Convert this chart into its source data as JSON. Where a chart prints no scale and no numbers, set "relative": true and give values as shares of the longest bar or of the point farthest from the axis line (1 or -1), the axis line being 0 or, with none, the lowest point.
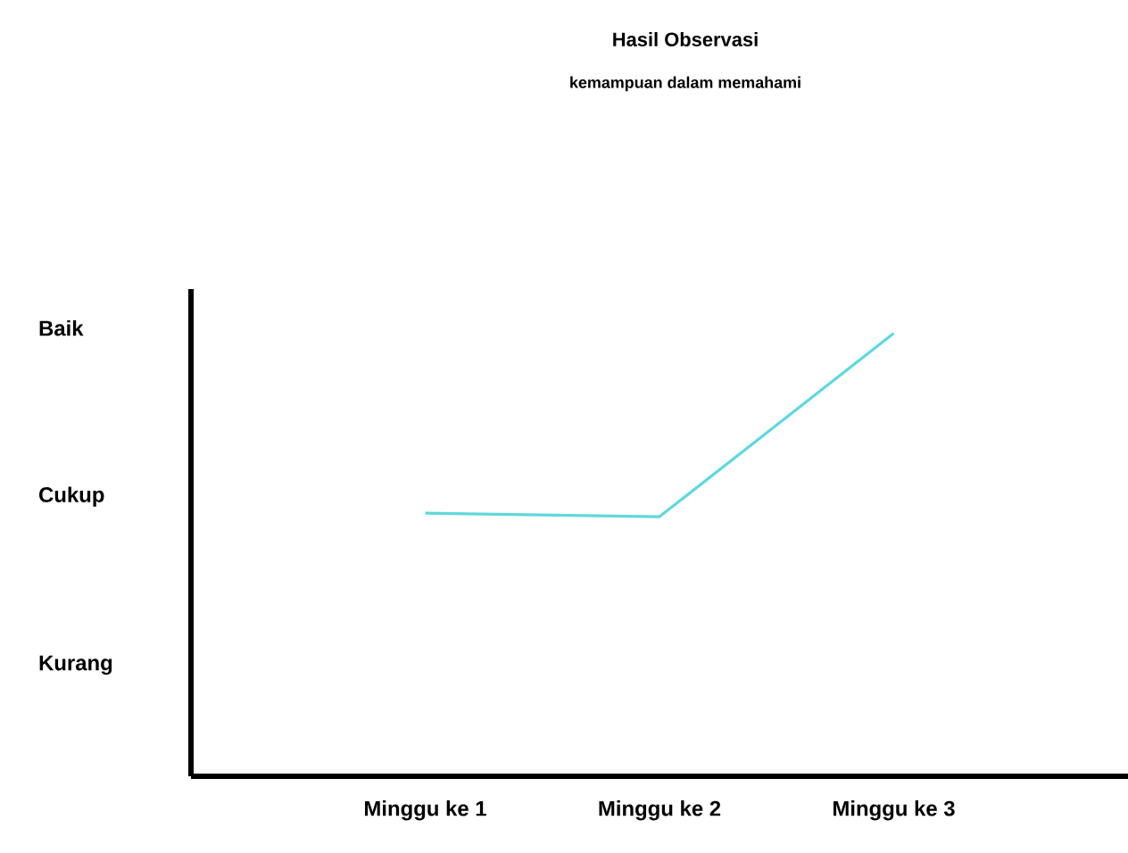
{
  "chart_data": {
    "type": "line",
    "title": "Hasil Observasi",
    "subtitle": "kemampuan dalam memahami",
    "categories": [
      "Minggu ke 1",
      "Minggu ke 2",
      "Minggu ke 3"
    ],
    "series": [
      {
        "color": "#5fd8dc",
        "values": [
          0.594,
          0.586,
          1
        ]
      }
    ],
    "relative": true,
    "annotations": [
      "Baik",
      "Cukup",
      "Kurang"
    ],
    "line_style": "solid"
  }
}
